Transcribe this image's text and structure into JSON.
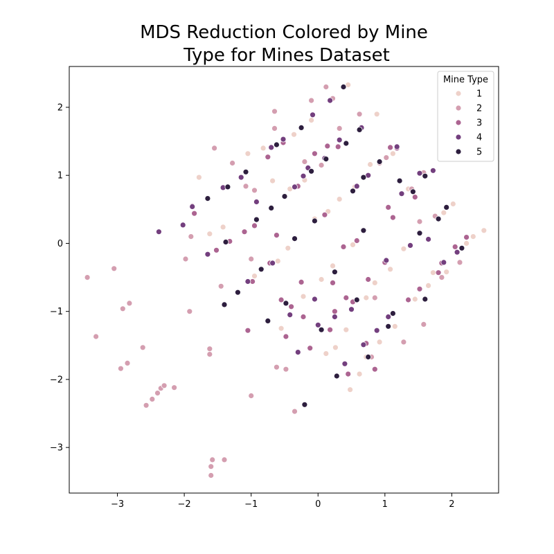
{
  "chart_data": {
    "type": "scatter",
    "title_lines": [
      "MDS Reduction Colored by Mine",
      "Type for Mines Dataset"
    ],
    "xlabel": "",
    "ylabel": "",
    "xlim": [
      -3.72,
      2.7
    ],
    "ylim": [
      -3.67,
      2.6
    ],
    "x_ticks": [
      -3,
      -2,
      -1,
      0,
      1,
      2
    ],
    "y_ticks": [
      -3,
      -2,
      -1,
      0,
      1,
      2
    ],
    "x_tick_labels": [
      "−3",
      "−2",
      "−1",
      "0",
      "1",
      "2"
    ],
    "y_tick_labels": [
      "−3",
      "−2",
      "−1",
      "0",
      "1",
      "2"
    ],
    "grid": false,
    "legend": {
      "title": "Mine Type",
      "placement": "top-right",
      "entries": [
        {
          "label": "1",
          "color": "#eed1c9"
        },
        {
          "label": "2",
          "color": "#d49eb0"
        },
        {
          "label": "3",
          "color": "#ac6491"
        },
        {
          "label": "4",
          "color": "#733f7e"
        },
        {
          "label": "5",
          "color": "#2d1e3e"
        }
      ]
    },
    "series": [
      {
        "name": "1",
        "color": "#eed1c9",
        "points": [
          [
            -1.78,
            0.97
          ],
          [
            -1.62,
            0.14
          ],
          [
            -1.42,
            0.24
          ],
          [
            -1.05,
            1.32
          ],
          [
            -0.95,
            -0.48
          ],
          [
            -0.82,
            1.4
          ],
          [
            -0.68,
            0.92
          ],
          [
            -0.6,
            -0.26
          ],
          [
            -0.55,
            -1.25
          ],
          [
            -0.45,
            -0.07
          ],
          [
            -0.42,
            0.8
          ],
          [
            -0.36,
            1.6
          ],
          [
            -0.22,
            -0.78
          ],
          [
            -0.2,
            0.93
          ],
          [
            -0.1,
            1.81
          ],
          [
            -0.05,
            0.36
          ],
          [
            0.05,
            -0.53
          ],
          [
            0.12,
            -1.62
          ],
          [
            0.15,
            0.47
          ],
          [
            0.22,
            -0.33
          ],
          [
            0.26,
            -1.53
          ],
          [
            0.32,
            0.65
          ],
          [
            0.42,
            -1.27
          ],
          [
            0.45,
            2.33
          ],
          [
            0.48,
            -2.15
          ],
          [
            0.52,
            -0.02
          ],
          [
            0.55,
            0.83
          ],
          [
            0.62,
            -1.92
          ],
          [
            0.72,
            -1.67
          ],
          [
            0.72,
            -0.8
          ],
          [
            0.78,
            1.16
          ],
          [
            0.85,
            -0.58
          ],
          [
            0.88,
            1.9
          ],
          [
            0.92,
            -1.45
          ],
          [
            1.08,
            -0.38
          ],
          [
            1.12,
            1.32
          ],
          [
            1.15,
            -1.22
          ],
          [
            1.28,
            -0.08
          ],
          [
            1.35,
            0.8
          ],
          [
            1.45,
            -0.82
          ],
          [
            1.65,
            -0.62
          ],
          [
            1.72,
            -0.43
          ],
          [
            1.88,
            0.45
          ],
          [
            1.92,
            -0.42
          ],
          [
            2.02,
            0.58
          ],
          [
            2.22,
            0.0
          ],
          [
            2.32,
            0.1
          ],
          [
            2.48,
            0.19
          ]
        ]
      },
      {
        "name": "2",
        "color": "#d49eb0",
        "points": [
          [
            -3.45,
            -0.5
          ],
          [
            -3.32,
            -1.37
          ],
          [
            -3.05,
            -0.37
          ],
          [
            -2.95,
            -1.84
          ],
          [
            -2.92,
            -0.96
          ],
          [
            -2.85,
            -1.76
          ],
          [
            -2.82,
            -0.88
          ],
          [
            -2.62,
            -1.53
          ],
          [
            -2.57,
            -2.38
          ],
          [
            -2.48,
            -2.29
          ],
          [
            -2.4,
            -2.2
          ],
          [
            -2.35,
            -2.13
          ],
          [
            -2.3,
            -2.09
          ],
          [
            -2.15,
            -2.12
          ],
          [
            -1.98,
            -0.23
          ],
          [
            -1.92,
            -1.0
          ],
          [
            -1.9,
            0.1
          ],
          [
            -1.62,
            -1.55
          ],
          [
            -1.62,
            -1.63
          ],
          [
            -1.6,
            -3.41
          ],
          [
            -1.6,
            -3.28
          ],
          [
            -1.58,
            -3.18
          ],
          [
            -1.55,
            1.4
          ],
          [
            -1.45,
            -0.63
          ],
          [
            -1.4,
            -3.18
          ],
          [
            -1.28,
            1.18
          ],
          [
            -1.08,
            0.84
          ],
          [
            -1.0,
            -0.23
          ],
          [
            -1.0,
            -2.24
          ],
          [
            -0.95,
            0.78
          ],
          [
            -0.65,
            1.69
          ],
          [
            -0.65,
            1.94
          ],
          [
            -0.62,
            -1.82
          ],
          [
            -0.48,
            -1.85
          ],
          [
            -0.35,
            -2.47
          ],
          [
            -0.2,
            1.2
          ],
          [
            -0.1,
            2.1
          ],
          [
            0.05,
            1.15
          ],
          [
            0.12,
            2.3
          ],
          [
            0.22,
            2.13
          ],
          [
            0.32,
            1.69
          ],
          [
            0.62,
            1.9
          ],
          [
            0.8,
            -1.67
          ],
          [
            0.85,
            -0.8
          ],
          [
            0.92,
            1.18
          ],
          [
            1.02,
            1.26
          ],
          [
            1.28,
            -1.45
          ],
          [
            1.4,
            0.8
          ],
          [
            1.52,
            0.32
          ],
          [
            1.58,
            1.04
          ],
          [
            1.58,
            -1.19
          ],
          [
            1.75,
            0.4
          ],
          [
            1.85,
            -0.5
          ],
          [
            2.12,
            -0.28
          ]
        ]
      },
      {
        "name": "3",
        "color": "#ac6491",
        "points": [
          [
            -1.88,
            0.55
          ],
          [
            -1.85,
            0.44
          ],
          [
            -1.52,
            -0.1
          ],
          [
            -1.32,
            0.03
          ],
          [
            -1.1,
            0.17
          ],
          [
            -1.05,
            -1.28
          ],
          [
            -0.98,
            -0.56
          ],
          [
            -0.95,
            0.26
          ],
          [
            -0.75,
            1.27
          ],
          [
            -0.72,
            -0.29
          ],
          [
            -0.62,
            0.12
          ],
          [
            -0.55,
            -0.83
          ],
          [
            -0.52,
            1.48
          ],
          [
            -0.48,
            -1.37
          ],
          [
            -0.4,
            -0.93
          ],
          [
            -0.3,
            0.84
          ],
          [
            -0.25,
            -0.57
          ],
          [
            -0.22,
            -1.08
          ],
          [
            -0.12,
            -1.54
          ],
          [
            -0.05,
            1.32
          ],
          [
            0.1,
            0.42
          ],
          [
            0.14,
            1.43
          ],
          [
            0.18,
            -1.27
          ],
          [
            0.22,
            -0.58
          ],
          [
            0.25,
            -1.0
          ],
          [
            0.3,
            1.42
          ],
          [
            0.38,
            -0.05
          ],
          [
            0.42,
            -0.8
          ],
          [
            0.45,
            -1.92
          ],
          [
            0.52,
            -0.86
          ],
          [
            0.58,
            0.04
          ],
          [
            0.72,
            -1.47
          ],
          [
            0.75,
            -0.53
          ],
          [
            0.85,
            -1.85
          ],
          [
            1.0,
            -0.28
          ],
          [
            1.05,
            0.53
          ],
          [
            1.08,
            1.41
          ],
          [
            1.12,
            0.38
          ],
          [
            1.18,
            1.4
          ],
          [
            1.35,
            -0.83
          ],
          [
            1.45,
            0.68
          ],
          [
            1.52,
            -0.67
          ],
          [
            1.8,
            -0.43
          ],
          [
            1.85,
            -0.29
          ],
          [
            2.05,
            -0.05
          ],
          [
            2.22,
            0.09
          ]
        ]
      },
      {
        "name": "4",
        "color": "#733f7e",
        "points": [
          [
            -2.38,
            0.17
          ],
          [
            -2.02,
            0.27
          ],
          [
            -1.88,
            0.54
          ],
          [
            -1.65,
            -0.16
          ],
          [
            -1.42,
            0.82
          ],
          [
            -1.15,
            0.97
          ],
          [
            -1.05,
            -0.56
          ],
          [
            -0.92,
            0.61
          ],
          [
            -0.7,
            1.41
          ],
          [
            -0.68,
            -0.29
          ],
          [
            -0.52,
            1.53
          ],
          [
            -0.42,
            -1.05
          ],
          [
            -0.35,
            0.83
          ],
          [
            -0.3,
            -1.6
          ],
          [
            -0.22,
            0.99
          ],
          [
            -0.15,
            1.11
          ],
          [
            -0.08,
            1.89
          ],
          [
            -0.05,
            -0.82
          ],
          [
            0.0,
            -1.2
          ],
          [
            0.1,
            1.25
          ],
          [
            0.18,
            2.1
          ],
          [
            0.25,
            -1.08
          ],
          [
            0.32,
            1.52
          ],
          [
            0.4,
            -1.77
          ],
          [
            0.5,
            -0.97
          ],
          [
            0.58,
            0.84
          ],
          [
            0.65,
            1.7
          ],
          [
            0.68,
            -1.49
          ],
          [
            0.75,
            1.0
          ],
          [
            0.88,
            -1.28
          ],
          [
            1.02,
            -0.25
          ],
          [
            1.05,
            -1.08
          ],
          [
            1.18,
            1.42
          ],
          [
            1.25,
            0.73
          ],
          [
            1.38,
            -0.03
          ],
          [
            1.52,
            1.03
          ],
          [
            1.65,
            0.06
          ],
          [
            1.72,
            1.07
          ],
          [
            1.88,
            -0.28
          ],
          [
            2.08,
            -0.13
          ]
        ]
      },
      {
        "name": "5",
        "color": "#2d1e3e",
        "points": [
          [
            -1.65,
            0.66
          ],
          [
            -1.4,
            -0.9
          ],
          [
            -1.38,
            0.02
          ],
          [
            -1.35,
            0.83
          ],
          [
            -1.2,
            -0.72
          ],
          [
            -1.08,
            1.05
          ],
          [
            -0.92,
            0.35
          ],
          [
            -0.85,
            -0.38
          ],
          [
            -0.75,
            -1.14
          ],
          [
            -0.7,
            0.52
          ],
          [
            -0.62,
            1.45
          ],
          [
            -0.5,
            0.69
          ],
          [
            -0.48,
            -0.88
          ],
          [
            -0.35,
            0.07
          ],
          [
            -0.25,
            1.7
          ],
          [
            -0.2,
            -2.37
          ],
          [
            -0.1,
            1.06
          ],
          [
            -0.05,
            0.33
          ],
          [
            0.05,
            -1.27
          ],
          [
            0.12,
            1.24
          ],
          [
            0.25,
            -0.42
          ],
          [
            0.28,
            -1.95
          ],
          [
            0.38,
            2.3
          ],
          [
            0.42,
            1.47
          ],
          [
            0.52,
            0.77
          ],
          [
            0.58,
            -0.83
          ],
          [
            0.62,
            1.67
          ],
          [
            0.68,
            0.97
          ],
          [
            0.68,
            0.19
          ],
          [
            0.75,
            -1.67
          ],
          [
            0.92,
            1.2
          ],
          [
            1.05,
            -1.22
          ],
          [
            1.12,
            -1.03
          ],
          [
            1.22,
            0.92
          ],
          [
            1.42,
            0.76
          ],
          [
            1.52,
            0.15
          ],
          [
            1.6,
            0.99
          ],
          [
            1.6,
            -0.82
          ],
          [
            1.8,
            0.36
          ],
          [
            1.92,
            0.53
          ],
          [
            2.15,
            -0.07
          ]
        ]
      }
    ]
  }
}
